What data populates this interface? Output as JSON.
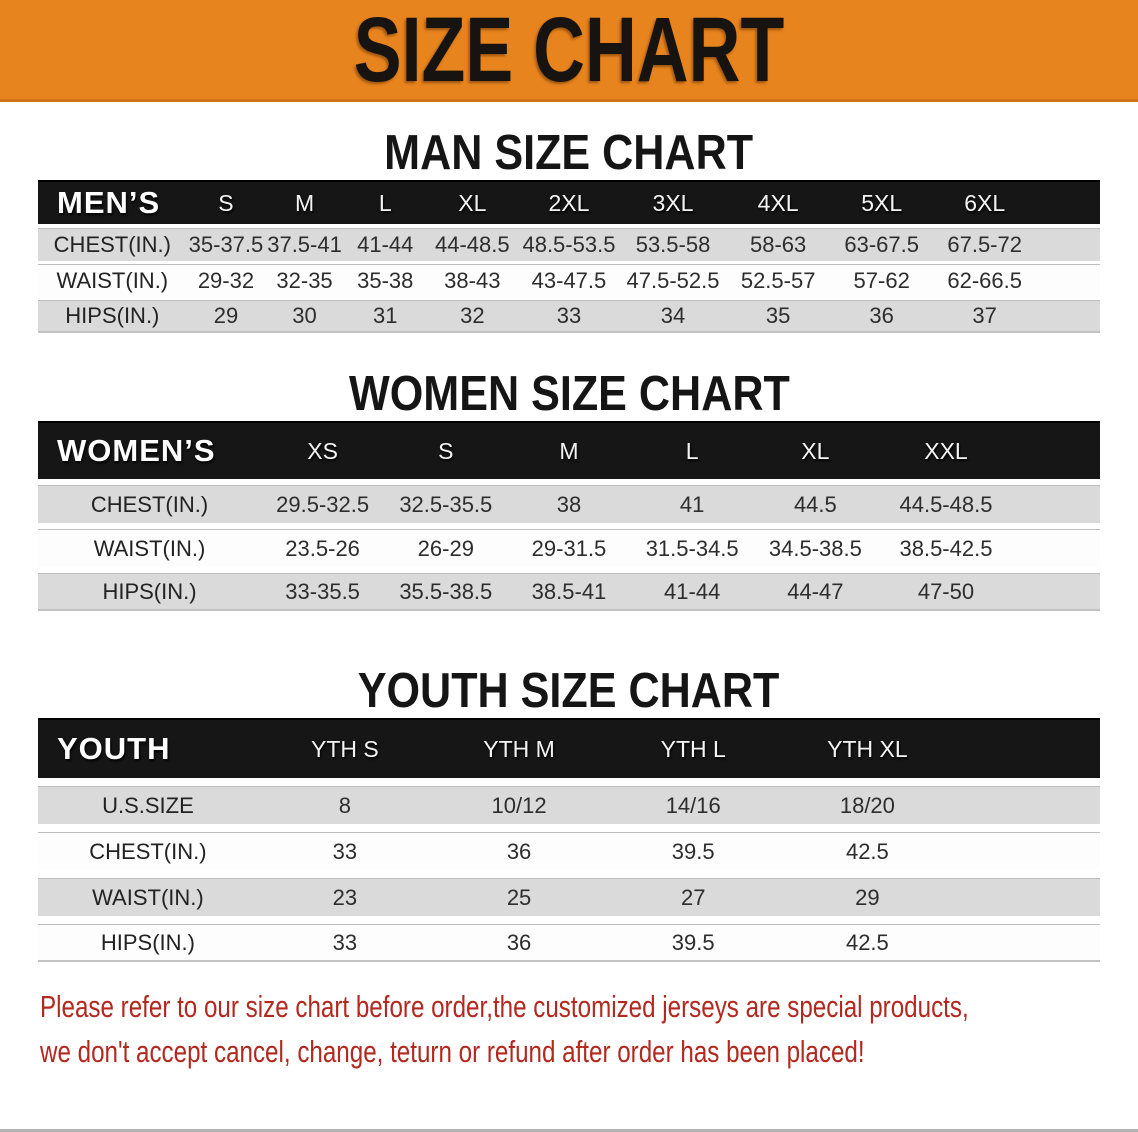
{
  "banner": {
    "title": "SIZE CHART",
    "bg_color": "#E8841E",
    "text_color": "#171310"
  },
  "sections": {
    "men": {
      "title": "MAN SIZE CHART",
      "table": {
        "header_label": "MEN’S",
        "sizes": [
          "S",
          "M",
          "L",
          "XL",
          "2XL",
          "3XL",
          "4XL",
          "5XL",
          "6XL"
        ],
        "rows": [
          {
            "label": "CHEST(IN.)",
            "values": [
              "35-37.5",
              "37.5-41",
              "41-44",
              "44-48.5",
              "48.5-53.5",
              "53.5-58",
              "58-63",
              "63-67.5",
              "67.5-72"
            ]
          },
          {
            "label": "WAIST(IN.)",
            "values": [
              "29-32",
              "32-35",
              "35-38",
              "38-43",
              "43-47.5",
              "47.5-52.5",
              "52.5-57",
              "57-62",
              "62-66.5"
            ]
          },
          {
            "label": "HIPS(IN.)",
            "values": [
              "29",
              "30",
              "31",
              "32",
              "33",
              "34",
              "35",
              "36",
              "37"
            ]
          }
        ]
      }
    },
    "women": {
      "title": "WOMEN SIZE CHART",
      "table": {
        "header_label": "WOMEN’S",
        "sizes": [
          "XS",
          "S",
          "M",
          "L",
          "XL",
          "XXL"
        ],
        "rows": [
          {
            "label": "CHEST(IN.)",
            "values": [
              "29.5-32.5",
              "32.5-35.5",
              "38",
              "41",
              "44.5",
              "44.5-48.5"
            ]
          },
          {
            "label": "WAIST(IN.)",
            "values": [
              "23.5-26",
              "26-29",
              "29-31.5",
              "31.5-34.5",
              "34.5-38.5",
              "38.5-42.5"
            ]
          },
          {
            "label": "HIPS(IN.)",
            "values": [
              "33-35.5",
              "35.5-38.5",
              "38.5-41",
              "41-44",
              "44-47",
              "47-50"
            ]
          }
        ]
      }
    },
    "youth": {
      "title": "YOUTH SIZE CHART",
      "table": {
        "header_label": "YOUTH",
        "sizes": [
          "YTH S",
          "YTH M",
          "YTH L",
          "YTH XL"
        ],
        "rows": [
          {
            "label": "U.S.SIZE",
            "values": [
              "8",
              "10/12",
              "14/16",
              "18/20"
            ]
          },
          {
            "label": "CHEST(IN.)",
            "values": [
              "33",
              "36",
              "39.5",
              "42.5"
            ]
          },
          {
            "label": "WAIST(IN.)",
            "values": [
              "23",
              "25",
              "27",
              "29"
            ]
          },
          {
            "label": "HIPS(IN.)",
            "values": [
              "33",
              "36",
              "39.5",
              "42.5"
            ]
          }
        ]
      }
    }
  },
  "footnote": {
    "line1": "Please refer to our size chart before order,the customized jerseys are special products,",
    "line2": "we don't accept cancel, change, teturn or refund after order has been placed!",
    "text_color": "#B3281F"
  }
}
